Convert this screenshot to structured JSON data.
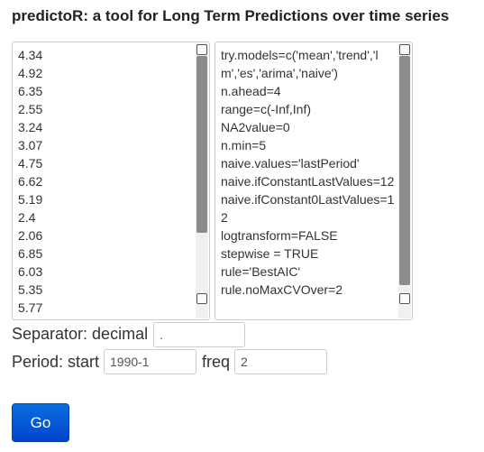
{
  "header": {
    "title": "predictoR: a tool for Long Term Predictions over time series"
  },
  "data_textarea": {
    "lines": [
      "4.34",
      "4.92",
      "6.35",
      "2.55",
      "3.24",
      "3.07",
      "4.75",
      "6.62",
      "5.19",
      "2.4",
      "2.06",
      "6.85",
      "6.03",
      "5.35",
      "5.77"
    ]
  },
  "params_textarea": {
    "lines": [
      "try.models=c('mean','trend','lm','es','arima','naive')",
      "n.ahead=4",
      "range=c(-Inf,Inf)",
      "NA2value=0",
      "n.min=5",
      "naive.values='lastPeriod'",
      "naive.ifConstantLastValues=12",
      "naive.ifConstant0LastValues=12",
      "logtransform=FALSE",
      "stepwise = TRUE",
      "rule='BestAIC'",
      "rule.noMaxCVOver=2"
    ]
  },
  "separator": {
    "label": "Separator: decimal",
    "value": "."
  },
  "period": {
    "start_label": "Period: start",
    "start_value": "1990-1",
    "freq_label": "freq",
    "freq_value": "2"
  },
  "button": {
    "label": "Go"
  }
}
